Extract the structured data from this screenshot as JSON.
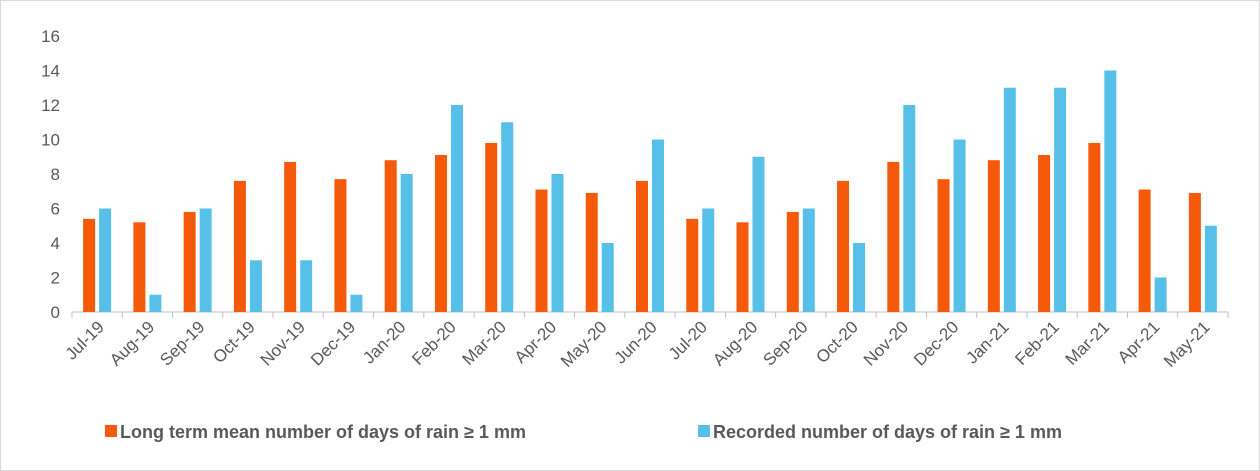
{
  "chart_data": {
    "type": "bar",
    "title": "",
    "xlabel": "",
    "ylabel": "",
    "ylim": [
      0,
      16
    ],
    "yticks": [
      0,
      2,
      4,
      6,
      8,
      10,
      12,
      14,
      16
    ],
    "grid": false,
    "legend_position": "bottom",
    "categories": [
      "Jul-19",
      "Aug-19",
      "Sep-19",
      "Oct-19",
      "Nov-19",
      "Dec-19",
      "Jan-20",
      "Feb-20",
      "Mar-20",
      "Apr-20",
      "May-20",
      "Jun-20",
      "Jul-20",
      "Aug-20",
      "Sep-20",
      "Oct-20",
      "Nov-20",
      "Dec-20",
      "Jan-21",
      "Feb-21",
      "Mar-21",
      "Apr-21",
      "May-21"
    ],
    "series": [
      {
        "name": "Long term mean number of days of rain ≥ 1 mm",
        "color": "#f55a0a",
        "values": [
          5.4,
          5.2,
          5.8,
          7.6,
          8.7,
          7.7,
          8.8,
          9.1,
          9.8,
          7.1,
          6.9,
          7.6,
          5.4,
          5.2,
          5.8,
          7.6,
          8.7,
          7.7,
          8.8,
          9.1,
          9.8,
          7.1,
          6.9
        ]
      },
      {
        "name": "Recorded number of days of rain ≥ 1 mm",
        "color": "#57c0e8",
        "values": [
          6,
          1,
          6,
          3,
          3,
          1,
          8,
          12,
          11,
          8,
          4,
          10,
          6,
          9,
          6,
          4,
          12,
          10,
          13,
          13,
          14,
          2,
          5
        ]
      }
    ]
  }
}
